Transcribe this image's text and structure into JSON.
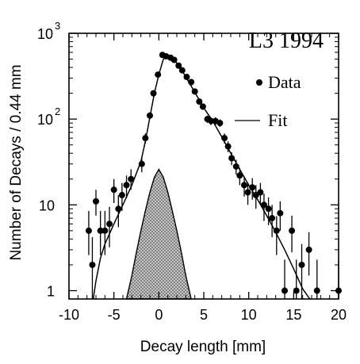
{
  "chart_data": {
    "type": "scatter",
    "title": "L3  1994",
    "xlabel": "Decay length [mm]",
    "ylabel": "Number of Decays / 0.44 mm",
    "xlim": [
      -10,
      20
    ],
    "ylim": [
      0.8,
      1000
    ],
    "yscale": "log",
    "x_ticks": [
      -10,
      -5,
      0,
      5,
      10,
      15,
      20
    ],
    "y_ticks": [
      {
        "value": 1,
        "base": "1",
        "exp": ""
      },
      {
        "value": 10,
        "base": "10",
        "exp": ""
      },
      {
        "value": 100,
        "base": "10",
        "exp": "2"
      },
      {
        "value": 1000,
        "base": "10",
        "exp": "3"
      }
    ],
    "legend": {
      "position": "top-right",
      "entries": [
        {
          "label": "Data",
          "marker": "point"
        },
        {
          "label": "Fit",
          "marker": "line"
        }
      ]
    },
    "series": [
      {
        "name": "Data",
        "kind": "points-with-errors",
        "points": [
          {
            "x": -7.8,
            "y": 5,
            "lo": 2.6,
            "hi": 8.5
          },
          {
            "x": -7.4,
            "y": 2,
            "lo": 0.7,
            "hi": 4.2
          },
          {
            "x": -7.0,
            "y": 11,
            "lo": 7.5,
            "hi": 15
          },
          {
            "x": -6.5,
            "y": 5,
            "lo": 2.6,
            "hi": 8.5
          },
          {
            "x": -6.0,
            "y": 5,
            "lo": 2.6,
            "hi": 8.5
          },
          {
            "x": -5.5,
            "y": 6,
            "lo": 3.2,
            "hi": 9.5
          },
          {
            "x": -5.0,
            "y": 15,
            "lo": 10.5,
            "hi": 20
          },
          {
            "x": -4.5,
            "y": 9,
            "lo": 5.5,
            "hi": 13
          },
          {
            "x": -4.1,
            "y": 13,
            "lo": 8.5,
            "hi": 18
          },
          {
            "x": -3.6,
            "y": 17,
            "lo": 12,
            "hi": 22
          },
          {
            "x": -3.1,
            "y": 20,
            "lo": 15,
            "hi": 26
          },
          {
            "x": -1.9,
            "y": 30,
            "lo": 24,
            "hi": 36
          },
          {
            "x": -1.5,
            "y": 60,
            "lo": 52,
            "hi": 68
          },
          {
            "x": -1.0,
            "y": 110,
            "lo": 100,
            "hi": 120
          },
          {
            "x": -0.6,
            "y": 200,
            "lo": 186,
            "hi": 214
          },
          {
            "x": -0.1,
            "y": 330,
            "lo": 312,
            "hi": 348
          },
          {
            "x": 0.4,
            "y": 560,
            "lo": 537,
            "hi": 583
          },
          {
            "x": 0.8,
            "y": 540,
            "lo": 517,
            "hi": 563
          },
          {
            "x": 1.3,
            "y": 520,
            "lo": 497,
            "hi": 543
          },
          {
            "x": 1.7,
            "y": 490,
            "lo": 468,
            "hi": 512
          },
          {
            "x": 2.2,
            "y": 420,
            "lo": 400,
            "hi": 440
          },
          {
            "x": 2.6,
            "y": 370,
            "lo": 351,
            "hi": 389
          },
          {
            "x": 3.1,
            "y": 310,
            "lo": 292,
            "hi": 328
          },
          {
            "x": 3.6,
            "y": 270,
            "lo": 254,
            "hi": 286
          },
          {
            "x": 4.0,
            "y": 210,
            "lo": 196,
            "hi": 224
          },
          {
            "x": 4.5,
            "y": 160,
            "lo": 147,
            "hi": 173
          },
          {
            "x": 4.9,
            "y": 140,
            "lo": 128,
            "hi": 152
          },
          {
            "x": 5.4,
            "y": 100,
            "lo": 90,
            "hi": 110
          },
          {
            "x": 5.8,
            "y": 95,
            "lo": 85,
            "hi": 105
          },
          {
            "x": 6.3,
            "y": 95,
            "lo": 85,
            "hi": 105
          },
          {
            "x": 6.8,
            "y": 90,
            "lo": 81,
            "hi": 99
          },
          {
            "x": 7.3,
            "y": 60,
            "lo": 52,
            "hi": 68
          },
          {
            "x": 7.7,
            "y": 48,
            "lo": 41,
            "hi": 55
          },
          {
            "x": 8.1,
            "y": 35,
            "lo": 29,
            "hi": 41
          },
          {
            "x": 8.6,
            "y": 28,
            "lo": 22.5,
            "hi": 33.5
          },
          {
            "x": 9.0,
            "y": 22,
            "lo": 17,
            "hi": 27
          },
          {
            "x": 9.5,
            "y": 17,
            "lo": 12.5,
            "hi": 21.5
          },
          {
            "x": 9.9,
            "y": 14,
            "lo": 10,
            "hi": 18
          },
          {
            "x": 10.4,
            "y": 16,
            "lo": 11.5,
            "hi": 20.5
          },
          {
            "x": 10.8,
            "y": 13,
            "lo": 9,
            "hi": 17
          },
          {
            "x": 11.3,
            "y": 14,
            "lo": 10,
            "hi": 18
          },
          {
            "x": 11.7,
            "y": 10,
            "lo": 6.5,
            "hi": 13.5
          },
          {
            "x": 12.2,
            "y": 9,
            "lo": 5.8,
            "hi": 12.2
          },
          {
            "x": 12.6,
            "y": 7,
            "lo": 4.2,
            "hi": 10
          },
          {
            "x": 13.1,
            "y": 5,
            "lo": 2.6,
            "hi": 7.4
          },
          {
            "x": 13.5,
            "y": 8,
            "lo": 5,
            "hi": 11
          },
          {
            "x": 14.0,
            "y": 1,
            "lo": 0.3,
            "hi": 2.3
          },
          {
            "x": 14.8,
            "y": 5,
            "lo": 2.8,
            "hi": 7.5
          },
          {
            "x": 15.3,
            "y": 1,
            "lo": 0.3,
            "hi": 2.3
          },
          {
            "x": 15.9,
            "y": 2,
            "lo": 0.8,
            "hi": 3.5
          },
          {
            "x": 16.7,
            "y": 3,
            "lo": 1.5,
            "hi": 4.8
          },
          {
            "x": 17.6,
            "y": 1,
            "lo": 0.3,
            "hi": 2.3
          },
          {
            "x": 20.0,
            "y": 1,
            "lo": 0.3,
            "hi": 2.3
          }
        ]
      },
      {
        "name": "Fit",
        "kind": "line",
        "points": [
          [
            -7.3,
            0.8
          ],
          [
            -7.0,
            1.3
          ],
          [
            -6.5,
            2.4
          ],
          [
            -6.0,
            3.5
          ],
          [
            -5.0,
            6.0
          ],
          [
            -4.0,
            10.0
          ],
          [
            -3.0,
            17.0
          ],
          [
            -2.0,
            32.0
          ],
          [
            -1.5,
            55.0
          ],
          [
            -1.0,
            105.0
          ],
          [
            -0.5,
            200.0
          ],
          [
            0.0,
            330.0
          ],
          [
            0.5,
            500.0
          ],
          [
            0.8,
            550.0
          ],
          [
            1.2,
            540.0
          ],
          [
            1.8,
            480.0
          ],
          [
            2.5,
            380.0
          ],
          [
            3.0,
            310.0
          ],
          [
            4.0,
            205.0
          ],
          [
            5.0,
            135.0
          ],
          [
            6.0,
            95.0
          ],
          [
            7.0,
            62.0
          ],
          [
            8.0,
            40.0
          ],
          [
            9.0,
            26.0
          ],
          [
            10.0,
            17.0
          ],
          [
            11.0,
            11.5
          ],
          [
            12.0,
            7.5
          ],
          [
            13.0,
            4.8
          ],
          [
            14.0,
            3.0
          ],
          [
            15.0,
            1.8
          ],
          [
            16.0,
            1.05
          ],
          [
            16.8,
            0.8
          ]
        ]
      },
      {
        "name": "",
        "kind": "hatched-area",
        "points": [
          [
            -3.6,
            0.8
          ],
          [
            -3.0,
            1.5
          ],
          [
            -2.5,
            2.8
          ],
          [
            -2.0,
            5.0
          ],
          [
            -1.5,
            8.5
          ],
          [
            -1.0,
            14.0
          ],
          [
            -0.5,
            21.0
          ],
          [
            0.0,
            26.0
          ],
          [
            0.5,
            21.0
          ],
          [
            1.0,
            14.0
          ],
          [
            1.5,
            8.5
          ],
          [
            2.0,
            5.0
          ],
          [
            2.5,
            2.8
          ],
          [
            3.0,
            1.5
          ],
          [
            3.6,
            0.8
          ]
        ]
      }
    ]
  }
}
